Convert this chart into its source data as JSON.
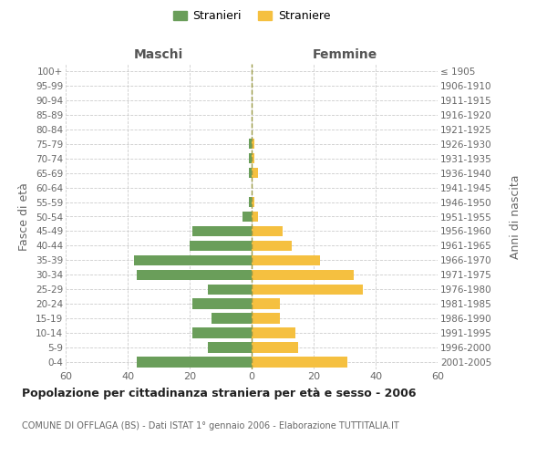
{
  "age_groups": [
    "0-4",
    "5-9",
    "10-14",
    "15-19",
    "20-24",
    "25-29",
    "30-34",
    "35-39",
    "40-44",
    "45-49",
    "50-54",
    "55-59",
    "60-64",
    "65-69",
    "70-74",
    "75-79",
    "80-84",
    "85-89",
    "90-94",
    "95-99",
    "100+"
  ],
  "birth_years": [
    "2001-2005",
    "1996-2000",
    "1991-1995",
    "1986-1990",
    "1981-1985",
    "1976-1980",
    "1971-1975",
    "1966-1970",
    "1961-1965",
    "1956-1960",
    "1951-1955",
    "1946-1950",
    "1941-1945",
    "1936-1940",
    "1931-1935",
    "1926-1930",
    "1921-1925",
    "1916-1920",
    "1911-1915",
    "1906-1910",
    "≤ 1905"
  ],
  "males": [
    37,
    14,
    19,
    13,
    19,
    14,
    37,
    38,
    20,
    19,
    3,
    1,
    0,
    1,
    1,
    1,
    0,
    0,
    0,
    0,
    0
  ],
  "females": [
    31,
    15,
    14,
    9,
    9,
    36,
    33,
    22,
    13,
    10,
    2,
    1,
    0,
    2,
    1,
    1,
    0,
    0,
    0,
    0,
    0
  ],
  "male_color": "#6a9e5a",
  "female_color": "#f5c040",
  "title": "Popolazione per cittadinanza straniera per età e sesso - 2006",
  "subtitle": "COMUNE DI OFFLAGA (BS) - Dati ISTAT 1° gennaio 2006 - Elaborazione TUTTITALIA.IT",
  "ylabel_left": "Fasce di età",
  "ylabel_right": "Anni di nascita",
  "label_maschi": "Maschi",
  "label_femmine": "Femmine",
  "legend_stranieri": "Stranieri",
  "legend_straniere": "Straniere",
  "xlim": 60,
  "background_color": "#ffffff",
  "grid_color": "#cccccc"
}
